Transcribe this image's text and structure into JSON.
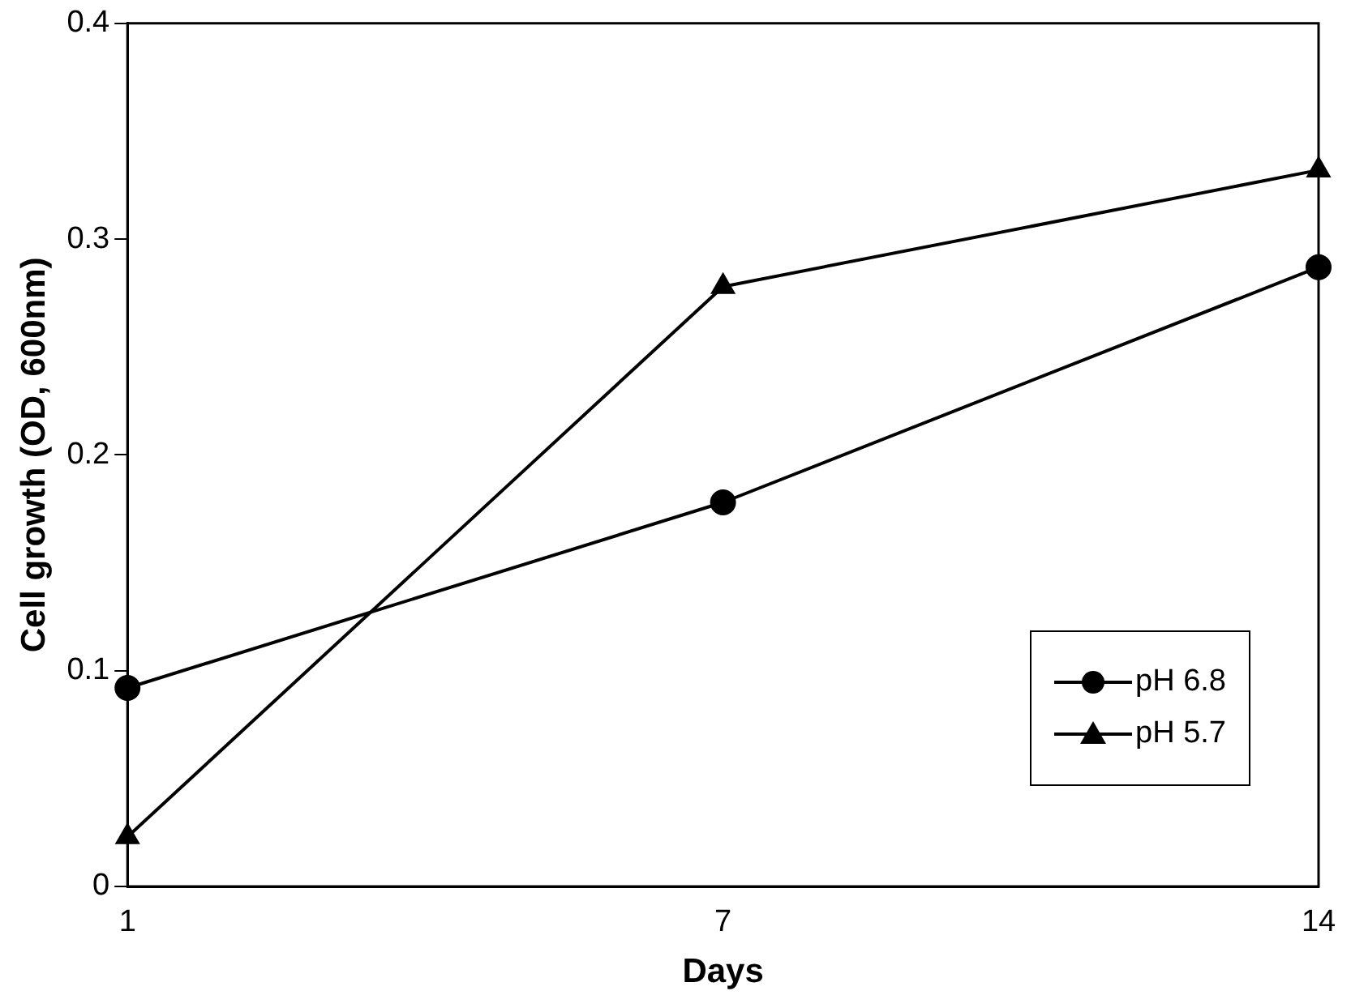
{
  "chart_data": {
    "type": "line",
    "xlabel": "Days",
    "ylabel": "Cell growth (OD, 600nm)",
    "categories": [
      "1",
      "7",
      "14"
    ],
    "series": [
      {
        "name": "pH 6.8",
        "color": "#000000",
        "marker": "circle",
        "values": [
          0.092,
          0.178,
          0.287
        ]
      },
      {
        "name": "pH 5.7",
        "color": "#000000",
        "marker": "triangle",
        "values": [
          0.023,
          0.278,
          0.332
        ]
      }
    ],
    "ylim": [
      0,
      0.4
    ],
    "yticks": [
      0,
      0.1,
      0.2,
      0.3,
      0.4
    ],
    "grid": false,
    "legend": "bottom right",
    "line_style": "solid"
  }
}
